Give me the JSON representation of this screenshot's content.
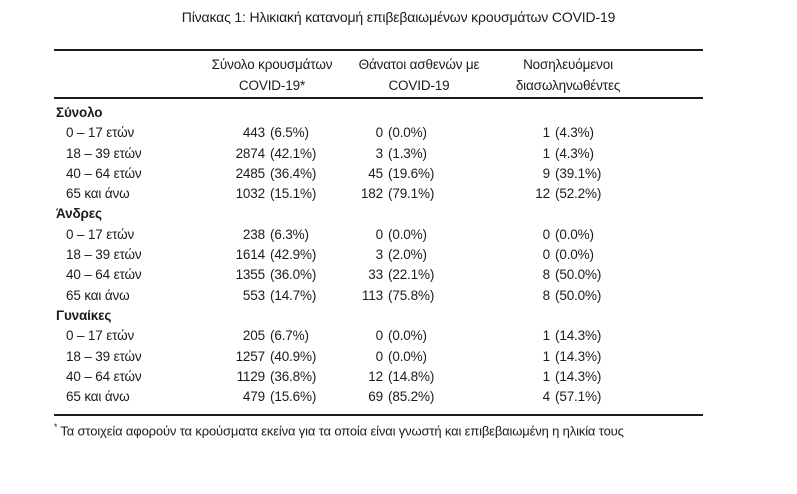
{
  "ui": {
    "title": "Πίνακας 1: Ηλικιακή κατανομή επιβεβαιωμένων κρουσμάτων COVID-19",
    "header": {
      "col_cases_line1": "Σύνολο κρουσμάτων",
      "col_cases_line2": "COVID-19*",
      "col_deaths_line1": "Θάνατοι ασθενών με",
      "col_deaths_line2": "COVID-19",
      "col_intubated_line1": "Νοσηλευόμενοι",
      "col_intubated_line2": "διασωληνωθέντες"
    },
    "sections": [
      {
        "label": "Σύνολο",
        "rows": [
          {
            "age": "0 – 17 ετών",
            "cases_n": "443",
            "cases_pct": "(6.5%)",
            "deaths_n": "0",
            "deaths_pct": "(0.0%)",
            "intub_n": "1",
            "intub_pct": "(4.3%)"
          },
          {
            "age": "18 – 39 ετών",
            "cases_n": "2874",
            "cases_pct": "(42.1%)",
            "deaths_n": "3",
            "deaths_pct": "(1.3%)",
            "intub_n": "1",
            "intub_pct": "(4.3%)"
          },
          {
            "age": "40 – 64 ετών",
            "cases_n": "2485",
            "cases_pct": "(36.4%)",
            "deaths_n": "45",
            "deaths_pct": "(19.6%)",
            "intub_n": "9",
            "intub_pct": "(39.1%)"
          },
          {
            "age": "65 και άνω",
            "cases_n": "1032",
            "cases_pct": "(15.1%)",
            "deaths_n": "182",
            "deaths_pct": "(79.1%)",
            "intub_n": "12",
            "intub_pct": "(52.2%)"
          }
        ]
      },
      {
        "label": "Άνδρες",
        "rows": [
          {
            "age": "0 – 17 ετών",
            "cases_n": "238",
            "cases_pct": "(6.3%)",
            "deaths_n": "0",
            "deaths_pct": "(0.0%)",
            "intub_n": "0",
            "intub_pct": "(0.0%)"
          },
          {
            "age": "18 – 39 ετών",
            "cases_n": "1614",
            "cases_pct": "(42.9%)",
            "deaths_n": "3",
            "deaths_pct": "(2.0%)",
            "intub_n": "0",
            "intub_pct": "(0.0%)"
          },
          {
            "age": "40 – 64 ετών",
            "cases_n": "1355",
            "cases_pct": "(36.0%)",
            "deaths_n": "33",
            "deaths_pct": "(22.1%)",
            "intub_n": "8",
            "intub_pct": "(50.0%)"
          },
          {
            "age": "65 και άνω",
            "cases_n": "553",
            "cases_pct": "(14.7%)",
            "deaths_n": "113",
            "deaths_pct": "(75.8%)",
            "intub_n": "8",
            "intub_pct": "(50.0%)"
          }
        ]
      },
      {
        "label": "Γυναίκες",
        "rows": [
          {
            "age": "0 – 17 ετών",
            "cases_n": "205",
            "cases_pct": "(6.7%)",
            "deaths_n": "0",
            "deaths_pct": "(0.0%)",
            "intub_n": "1",
            "intub_pct": "(14.3%)"
          },
          {
            "age": "18 – 39 ετών",
            "cases_n": "1257",
            "cases_pct": "(40.9%)",
            "deaths_n": "0",
            "deaths_pct": "(0.0%)",
            "intub_n": "1",
            "intub_pct": "(14.3%)"
          },
          {
            "age": "40 – 64 ετών",
            "cases_n": "1129",
            "cases_pct": "(36.8%)",
            "deaths_n": "12",
            "deaths_pct": "(14.8%)",
            "intub_n": "1",
            "intub_pct": "(14.3%)"
          },
          {
            "age": "65 και άνω",
            "cases_n": "479",
            "cases_pct": "(15.6%)",
            "deaths_n": "69",
            "deaths_pct": "(85.2%)",
            "intub_n": "4",
            "intub_pct": "(57.1%)"
          }
        ]
      }
    ],
    "footnote_marker": "*",
    "footnote_text": "Τα στοιχεία αφορούν τα κρούσματα εκείνα για τα οποία είναι γνωστή και επιβεβαιωμένη η ηλικία τους"
  },
  "chart_data": {
    "type": "table",
    "title": "Πίνακας 1: Ηλικιακή κατανομή επιβεβαιωμένων κρουσμάτων COVID-19",
    "columns": [
      "",
      "Σύνολο κρουσμάτων COVID-19*",
      "Θάνατοι ασθενών με COVID-19",
      "Νοσηλευόμενοι διασωληνωθέντες"
    ],
    "cell_format": "count (percent%)",
    "groups": [
      {
        "group": "Σύνολο",
        "rows": [
          {
            "age": "0 – 17 ετών",
            "cases": 443,
            "cases_pct": 6.5,
            "deaths": 0,
            "deaths_pct": 0.0,
            "intubated": 1,
            "intubated_pct": 4.3
          },
          {
            "age": "18 – 39 ετών",
            "cases": 2874,
            "cases_pct": 42.1,
            "deaths": 3,
            "deaths_pct": 1.3,
            "intubated": 1,
            "intubated_pct": 4.3
          },
          {
            "age": "40 – 64 ετών",
            "cases": 2485,
            "cases_pct": 36.4,
            "deaths": 45,
            "deaths_pct": 19.6,
            "intubated": 9,
            "intubated_pct": 39.1
          },
          {
            "age": "65 και άνω",
            "cases": 1032,
            "cases_pct": 15.1,
            "deaths": 182,
            "deaths_pct": 79.1,
            "intubated": 12,
            "intubated_pct": 52.2
          }
        ]
      },
      {
        "group": "Άνδρες",
        "rows": [
          {
            "age": "0 – 17 ετών",
            "cases": 238,
            "cases_pct": 6.3,
            "deaths": 0,
            "deaths_pct": 0.0,
            "intubated": 0,
            "intubated_pct": 0.0
          },
          {
            "age": "18 – 39 ετών",
            "cases": 1614,
            "cases_pct": 42.9,
            "deaths": 3,
            "deaths_pct": 2.0,
            "intubated": 0,
            "intubated_pct": 0.0
          },
          {
            "age": "40 – 64 ετών",
            "cases": 1355,
            "cases_pct": 36.0,
            "deaths": 33,
            "deaths_pct": 22.1,
            "intubated": 8,
            "intubated_pct": 50.0
          },
          {
            "age": "65 και άνω",
            "cases": 553,
            "cases_pct": 14.7,
            "deaths": 113,
            "deaths_pct": 75.8,
            "intubated": 8,
            "intubated_pct": 50.0
          }
        ]
      },
      {
        "group": "Γυναίκες",
        "rows": [
          {
            "age": "0 – 17 ετών",
            "cases": 205,
            "cases_pct": 6.7,
            "deaths": 0,
            "deaths_pct": 0.0,
            "intubated": 1,
            "intubated_pct": 14.3
          },
          {
            "age": "18 – 39 ετών",
            "cases": 1257,
            "cases_pct": 40.9,
            "deaths": 0,
            "deaths_pct": 0.0,
            "intubated": 1,
            "intubated_pct": 14.3
          },
          {
            "age": "40 – 64 ετών",
            "cases": 1129,
            "cases_pct": 36.8,
            "deaths": 12,
            "deaths_pct": 14.8,
            "intubated": 1,
            "intubated_pct": 14.3
          },
          {
            "age": "65 και άνω",
            "cases": 479,
            "cases_pct": 15.6,
            "deaths": 69,
            "deaths_pct": 85.2,
            "intubated": 4,
            "intubated_pct": 57.1
          }
        ]
      }
    ],
    "footnote": "* Τα στοιχεία αφορούν τα κρούσματα εκείνα για τα οποία είναι γνωστή και επιβεβαιωμένη η ηλικία τους"
  }
}
